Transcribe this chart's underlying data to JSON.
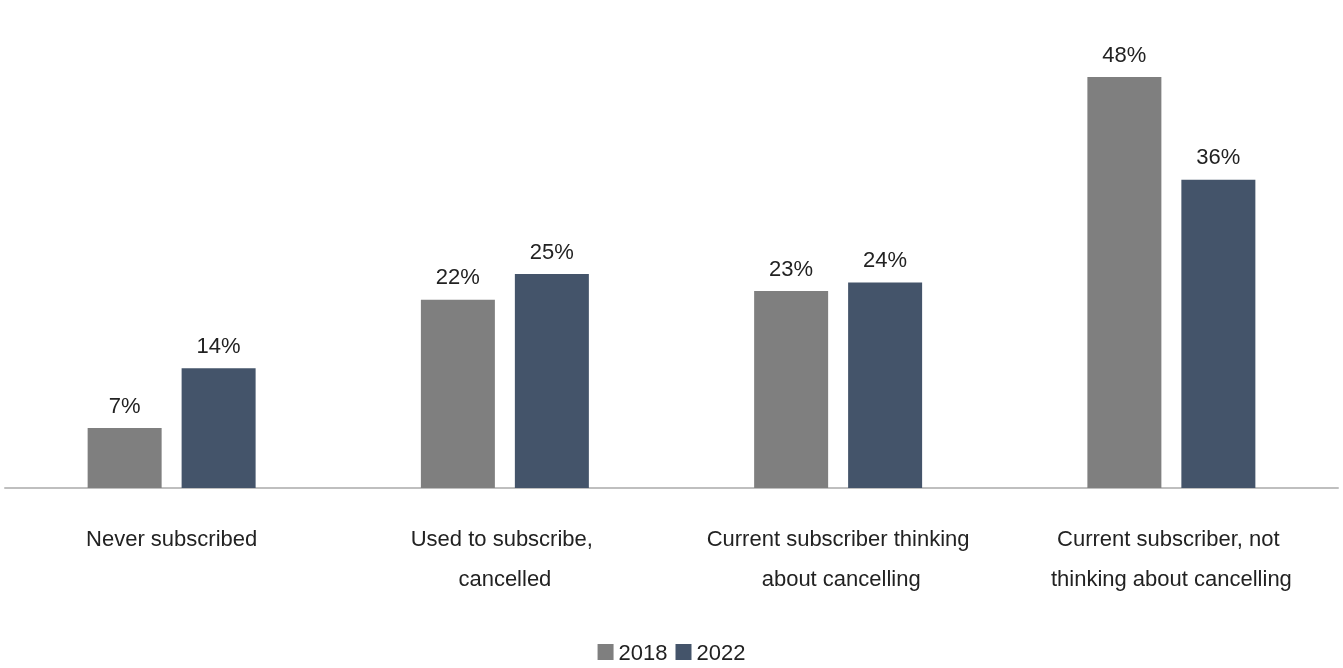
{
  "chart_data": {
    "type": "bar",
    "categories": [
      "Never subscribed",
      "Used to subscribe, cancelled",
      "Current subscriber thinking about cancelling",
      "Current subscriber, not thinking about cancelling"
    ],
    "series": [
      {
        "name": "2018",
        "color": "#7f7f7f",
        "values": [
          7,
          22,
          23,
          48
        ],
        "value_labels": [
          "7%",
          "22%",
          "23%",
          "48%"
        ]
      },
      {
        "name": "2022",
        "color": "#44546a",
        "values": [
          14,
          25,
          24,
          36
        ],
        "value_labels": [
          "14%",
          "25%",
          "24%",
          "36%"
        ]
      }
    ],
    "legend": "bottom",
    "tick_labels": "x"
  }
}
